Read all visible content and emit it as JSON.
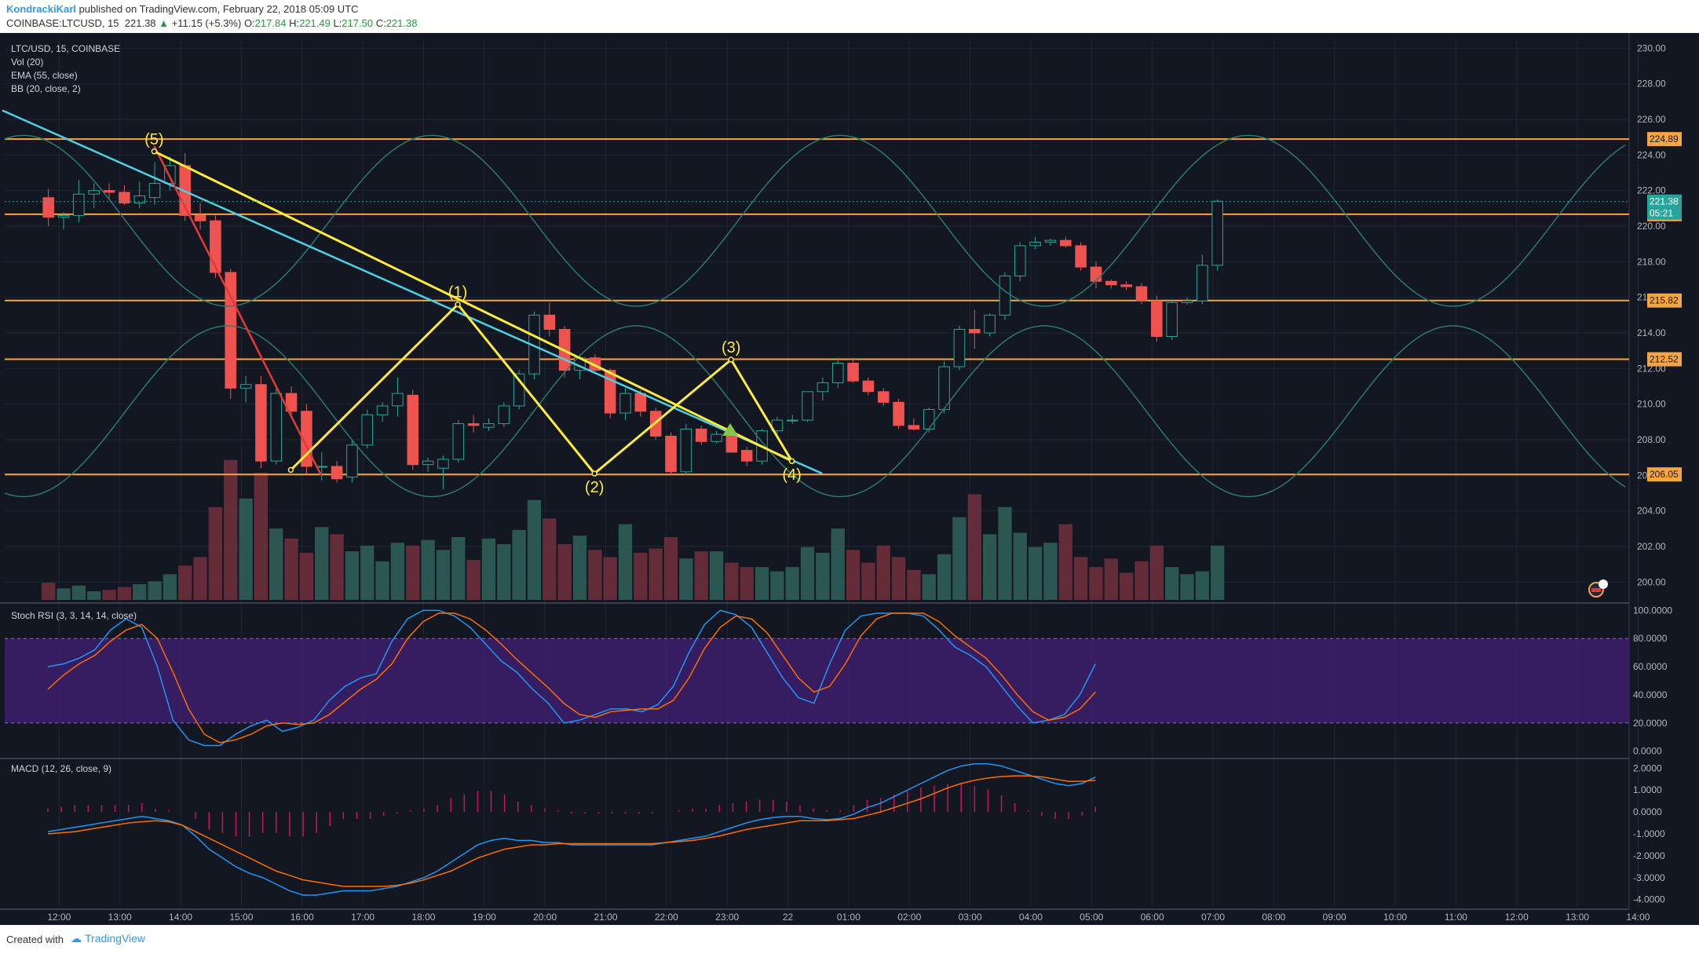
{
  "header": {
    "author": "KondrackiKarl",
    "published": "published on TradingView.com, February 22, 2018 05:09 UTC",
    "symbol": "COINBASE:LTCUSD, 15",
    "last": "221.38",
    "arrow": "▲",
    "change": "+11.15 (+5.3%)",
    "o_label": "O:",
    "o_val": "217.84",
    "h_label": "H:",
    "h_val": "221.49",
    "l_label": "L:",
    "l_val": "217.50",
    "c_label": "C:",
    "c_val": "221.38"
  },
  "legend": [
    "LTC/USD, 15, COINBASE",
    "Vol (20)",
    "EMA (55, close)",
    "BB (20, close, 2)"
  ],
  "footer": {
    "created_with": "Created with",
    "brand": "TradingView",
    "brand_icon": "tradingview-cloud-icon"
  },
  "colors": {
    "background": "#131722",
    "up": "#26a69a",
    "down": "#ef5350",
    "resistance": "#f7a540",
    "wave": "#ffeb3b",
    "trend_cyan": "#4dd0e1",
    "trend_red": "#e53935",
    "rsi_band": "#3d1e6d",
    "macd_line": "#2196f3",
    "signal_line": "#ff6d00"
  },
  "chart_data": [
    {
      "type": "candlestick",
      "title": "LTC/USD, 15, COINBASE",
      "ylim": [
        199,
        230.5
      ],
      "y_ticks": [
        "200.00",
        "202.00",
        "204.00",
        "206.00",
        "208.00",
        "210.00",
        "212.00",
        "214.00",
        "216.00",
        "218.00",
        "220.00",
        "222.00",
        "224.00",
        "226.00",
        "228.00",
        "230.00"
      ],
      "x_ticks": [
        "12:00",
        "13:00",
        "14:00",
        "15:00",
        "16:00",
        "17:00",
        "18:00",
        "19:00",
        "20:00",
        "21:00",
        "22:00",
        "23:00",
        "22",
        "01:00",
        "02:00",
        "03:00",
        "04:00",
        "05:00",
        "06:00",
        "07:00",
        "08:00",
        "09:00",
        "10:00",
        "11:00",
        "12:00",
        "13:00",
        "14:00"
      ],
      "candles_ohlc": [
        [
          221.6,
          222.1,
          220.0,
          220.5
        ],
        [
          220.5,
          220.8,
          219.8,
          220.6
        ],
        [
          220.6,
          222.6,
          220.2,
          221.8
        ],
        [
          221.8,
          222.4,
          221.0,
          222.0
        ],
        [
          222.0,
          222.4,
          221.5,
          221.9
        ],
        [
          221.9,
          222.3,
          221.2,
          221.3
        ],
        [
          221.3,
          222.5,
          221.0,
          221.7
        ],
        [
          221.6,
          223.6,
          221.2,
          222.4
        ],
        [
          222.4,
          223.9,
          222.0,
          223.4
        ],
        [
          223.4,
          224.1,
          220.3,
          220.6
        ],
        [
          220.6,
          221.3,
          219.8,
          220.3
        ],
        [
          220.3,
          220.6,
          217.1,
          217.4
        ],
        [
          217.4,
          217.6,
          210.3,
          210.9
        ],
        [
          210.9,
          211.6,
          210.1,
          211.1
        ],
        [
          211.1,
          211.6,
          206.4,
          206.8
        ],
        [
          206.8,
          211.0,
          206.6,
          210.6
        ],
        [
          210.6,
          211.0,
          209.4,
          209.6
        ],
        [
          209.6,
          210.0,
          206.1,
          206.5
        ],
        [
          206.5,
          207.3,
          205.7,
          206.5
        ],
        [
          206.5,
          206.8,
          205.6,
          205.8
        ],
        [
          205.9,
          208.0,
          205.6,
          207.7
        ],
        [
          207.7,
          209.7,
          207.5,
          209.4
        ],
        [
          209.4,
          210.1,
          209.0,
          209.9
        ],
        [
          209.9,
          211.5,
          209.3,
          210.6
        ],
        [
          210.5,
          210.8,
          206.3,
          206.6
        ],
        [
          206.6,
          207.0,
          206.2,
          206.8
        ],
        [
          206.4,
          207.1,
          205.2,
          206.9
        ],
        [
          206.9,
          209.1,
          206.7,
          208.9
        ],
        [
          208.9,
          209.4,
          208.4,
          208.8
        ],
        [
          208.7,
          209.2,
          208.5,
          208.9
        ],
        [
          208.9,
          210.1,
          208.7,
          209.9
        ],
        [
          209.9,
          211.9,
          209.7,
          211.7
        ],
        [
          211.7,
          215.2,
          211.4,
          215.0
        ],
        [
          215.0,
          215.7,
          213.8,
          214.2
        ],
        [
          214.2,
          214.4,
          211.5,
          211.9
        ],
        [
          211.9,
          212.8,
          211.4,
          212.6
        ],
        [
          212.6,
          212.8,
          211.7,
          211.9
        ],
        [
          211.9,
          212.0,
          209.2,
          209.5
        ],
        [
          209.5,
          210.9,
          209.1,
          210.6
        ],
        [
          210.6,
          210.8,
          209.3,
          209.6
        ],
        [
          209.6,
          209.8,
          208.0,
          208.2
        ],
        [
          208.2,
          208.4,
          206.0,
          206.2
        ],
        [
          206.2,
          208.9,
          206.0,
          208.6
        ],
        [
          208.6,
          208.8,
          207.7,
          207.9
        ],
        [
          207.9,
          208.5,
          207.8,
          208.3
        ],
        [
          208.3,
          208.5,
          207.3,
          207.3
        ],
        [
          207.4,
          207.6,
          206.5,
          206.8
        ],
        [
          206.8,
          208.6,
          206.6,
          208.5
        ],
        [
          208.5,
          209.3,
          208.3,
          209.1
        ],
        [
          209.1,
          209.4,
          208.9,
          209.1
        ],
        [
          209.1,
          210.7,
          209.0,
          210.7
        ],
        [
          210.7,
          211.5,
          210.2,
          211.2
        ],
        [
          211.2,
          212.6,
          210.9,
          212.3
        ],
        [
          212.3,
          212.6,
          211.2,
          211.3
        ],
        [
          211.3,
          211.5,
          210.5,
          210.7
        ],
        [
          210.7,
          210.9,
          209.9,
          210.1
        ],
        [
          210.1,
          210.3,
          208.6,
          208.8
        ],
        [
          208.8,
          209.2,
          208.5,
          208.6
        ],
        [
          208.6,
          209.8,
          208.4,
          209.7
        ],
        [
          209.7,
          212.4,
          209.5,
          212.1
        ],
        [
          212.1,
          214.4,
          211.9,
          214.2
        ],
        [
          214.2,
          215.3,
          213.1,
          214.0
        ],
        [
          214.0,
          215.1,
          213.8,
          215.0
        ],
        [
          215.0,
          217.4,
          214.7,
          217.2
        ],
        [
          217.2,
          219.1,
          216.9,
          218.9
        ],
        [
          218.9,
          219.4,
          218.7,
          219.1
        ],
        [
          219.1,
          219.3,
          218.9,
          219.2
        ],
        [
          219.2,
          219.4,
          218.8,
          218.9
        ],
        [
          218.9,
          219.1,
          217.5,
          217.7
        ],
        [
          217.7,
          218.0,
          216.5,
          216.9
        ],
        [
          216.9,
          217.0,
          216.5,
          216.7
        ],
        [
          216.7,
          216.9,
          216.4,
          216.6
        ],
        [
          216.6,
          216.8,
          215.6,
          215.8
        ],
        [
          215.8,
          216.1,
          213.5,
          213.8
        ],
        [
          213.8,
          215.9,
          213.6,
          215.7
        ],
        [
          215.7,
          216.0,
          215.6,
          215.8
        ],
        [
          215.8,
          218.4,
          215.6,
          217.8
        ],
        [
          217.8,
          221.5,
          217.5,
          221.4
        ]
      ],
      "volume": [
        1.2,
        0.8,
        1.0,
        0.6,
        0.7,
        0.9,
        1.1,
        1.3,
        1.8,
        2.4,
        3.0,
        6.5,
        9.8,
        7.1,
        8.9,
        5.0,
        4.3,
        3.3,
        5.1,
        4.6,
        3.4,
        3.8,
        2.7,
        4.0,
        3.8,
        4.2,
        3.5,
        4.4,
        2.8,
        4.3,
        3.9,
        4.9,
        7.0,
        5.7,
        3.9,
        4.5,
        3.5,
        3.0,
        5.3,
        3.3,
        3.6,
        4.4,
        2.9,
        3.4,
        3.4,
        2.6,
        2.3,
        2.3,
        2.0,
        2.3,
        3.7,
        3.3,
        5.0,
        3.5,
        2.6,
        3.8,
        3.0,
        2.1,
        1.8,
        3.2,
        5.8,
        7.4,
        4.6,
        6.5,
        4.7,
        3.7,
        4.0,
        5.3,
        3.0,
        2.3,
        2.9,
        1.9,
        2.7,
        3.8,
        2.3,
        1.8,
        2.0,
        3.8
      ],
      "horizontal_levels": [
        224.89,
        220.67,
        215.82,
        212.52,
        206.05
      ],
      "last_price": 221.38,
      "countdown": "05:21",
      "wave_points": [
        {
          "label": "",
          "time": "15:45",
          "price": 206.3
        },
        {
          "label": "(1)",
          "time": "18:30",
          "price": 215.6
        },
        {
          "label": "(2)",
          "time": "20:45",
          "price": 206.1
        },
        {
          "label": "(3)",
          "time": "23:00",
          "price": 212.5
        },
        {
          "label": "(4)",
          "time": "00:00",
          "price": 206.8
        },
        {
          "label": "(5)",
          "time": "13:30",
          "price": 224.2
        }
      ],
      "trendlines": [
        {
          "name": "cyan-trendline",
          "color": "#4dd0e1",
          "from": [
            "11:00",
            226.5
          ],
          "to": [
            "00:30",
            206.1
          ]
        },
        {
          "name": "red-trendline",
          "color": "#e53935",
          "from": [
            "16:15",
            206.0
          ],
          "to": [
            "13:30",
            224.5
          ]
        }
      ]
    },
    {
      "type": "line",
      "title": "Stoch RSI (3, 3, 14, 14, close)",
      "ylim": [
        0,
        100
      ],
      "y_ticks": [
        "100.0000",
        "80.0000",
        "60.0000",
        "40.0000",
        "20.0000",
        "0.0000"
      ],
      "band": [
        20,
        80
      ],
      "series": [
        {
          "name": "K",
          "color": "#2196f3",
          "values": [
            60,
            62,
            66,
            72,
            86,
            94,
            88,
            60,
            22,
            8,
            4,
            4,
            12,
            18,
            22,
            14,
            17,
            22,
            36,
            46,
            52,
            55,
            78,
            94,
            100,
            100,
            96,
            88,
            76,
            64,
            56,
            44,
            34,
            20,
            22,
            26,
            30,
            30,
            28,
            33,
            46,
            70,
            90,
            100,
            97,
            88,
            70,
            52,
            38,
            34,
            62,
            86,
            96,
            98,
            98,
            98,
            96,
            86,
            74,
            68,
            60,
            46,
            32,
            20,
            22,
            26,
            40,
            62
          ]
        },
        {
          "name": "D",
          "color": "#ff6d00",
          "values": [
            44,
            54,
            62,
            68,
            78,
            86,
            90,
            80,
            56,
            30,
            12,
            6,
            8,
            12,
            18,
            20,
            19,
            20,
            26,
            35,
            44,
            51,
            62,
            80,
            92,
            98,
            98,
            94,
            86,
            76,
            65,
            55,
            45,
            34,
            26,
            24,
            28,
            29,
            30,
            30,
            36,
            52,
            73,
            88,
            96,
            94,
            84,
            68,
            52,
            42,
            46,
            62,
            82,
            94,
            98,
            98,
            98,
            92,
            82,
            74,
            66,
            54,
            40,
            28,
            22,
            24,
            30,
            42
          ]
        }
      ]
    },
    {
      "type": "line",
      "title": "MACD (12, 26, close, 9)",
      "ylim": [
        -4.3,
        2.3
      ],
      "y_ticks": [
        "2.0000",
        "1.0000",
        "0.0000",
        "-1.0000",
        "-2.0000",
        "-3.0000",
        "-4.0000"
      ],
      "series": [
        {
          "name": "MACD",
          "color": "#2196f3",
          "values": [
            -0.9,
            -0.8,
            -0.7,
            -0.6,
            -0.5,
            -0.4,
            -0.3,
            -0.2,
            -0.3,
            -0.4,
            -0.6,
            -1.1,
            -1.7,
            -2.1,
            -2.5,
            -2.8,
            -3.0,
            -3.3,
            -3.6,
            -3.8,
            -3.8,
            -3.7,
            -3.6,
            -3.6,
            -3.6,
            -3.5,
            -3.4,
            -3.2,
            -3.0,
            -2.7,
            -2.3,
            -1.9,
            -1.5,
            -1.3,
            -1.2,
            -1.3,
            -1.3,
            -1.4,
            -1.4,
            -1.5,
            -1.5,
            -1.5,
            -1.5,
            -1.5,
            -1.5,
            -1.5,
            -1.4,
            -1.3,
            -1.2,
            -1.1,
            -0.9,
            -0.7,
            -0.5,
            -0.35,
            -0.25,
            -0.2,
            -0.2,
            -0.3,
            -0.35,
            -0.3,
            -0.1,
            0.2,
            0.4,
            0.7,
            1.0,
            1.3,
            1.6,
            1.9,
            2.1,
            2.2,
            2.2,
            2.1,
            1.9,
            1.7,
            1.5,
            1.3,
            1.2,
            1.3,
            1.6
          ]
        },
        {
          "name": "Signal",
          "color": "#ff6d00",
          "values": [
            -1.0,
            -0.95,
            -0.9,
            -0.8,
            -0.7,
            -0.6,
            -0.5,
            -0.45,
            -0.4,
            -0.45,
            -0.6,
            -0.9,
            -1.2,
            -1.5,
            -1.8,
            -2.1,
            -2.4,
            -2.7,
            -2.9,
            -3.1,
            -3.2,
            -3.3,
            -3.4,
            -3.4,
            -3.4,
            -3.4,
            -3.35,
            -3.25,
            -3.1,
            -2.9,
            -2.7,
            -2.4,
            -2.1,
            -1.9,
            -1.7,
            -1.6,
            -1.5,
            -1.5,
            -1.45,
            -1.45,
            -1.45,
            -1.45,
            -1.45,
            -1.45,
            -1.45,
            -1.45,
            -1.4,
            -1.35,
            -1.3,
            -1.2,
            -1.1,
            -0.95,
            -0.8,
            -0.7,
            -0.6,
            -0.5,
            -0.4,
            -0.4,
            -0.4,
            -0.35,
            -0.3,
            -0.15,
            0.0,
            0.2,
            0.4,
            0.6,
            0.85,
            1.1,
            1.3,
            1.45,
            1.55,
            1.62,
            1.65,
            1.65,
            1.6,
            1.5,
            1.4,
            1.4,
            1.45
          ]
        }
      ]
    }
  ]
}
